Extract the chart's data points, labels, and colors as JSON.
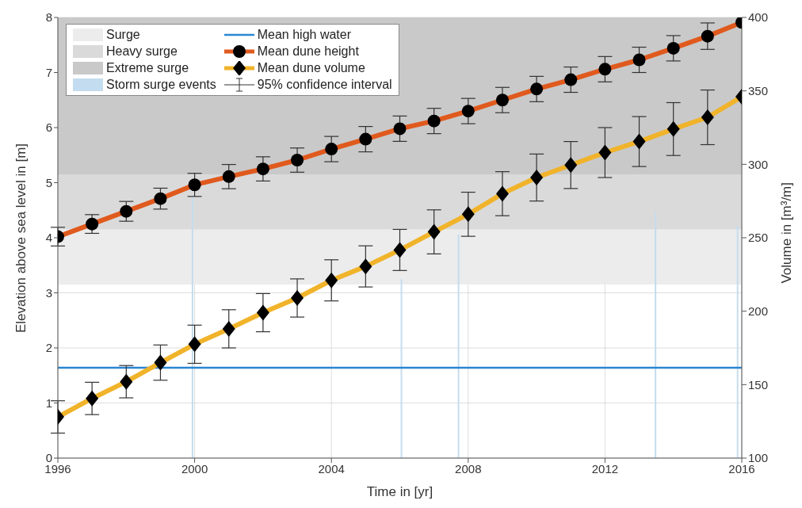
{
  "chart_data": {
    "type": "line",
    "xlabel": "Time in [yr]",
    "ylabel": "Elevation above sea level in [m]",
    "y2label": "Volume in [m³/m]",
    "xlim": [
      1996,
      2016
    ],
    "xticks": [
      1996,
      2000,
      2004,
      2008,
      2012,
      2016
    ],
    "ylim": [
      0,
      8
    ],
    "yticks": [
      0,
      1,
      2,
      3,
      4,
      5,
      6,
      7,
      8
    ],
    "y2lim": [
      100,
      400
    ],
    "y2ticks": [
      100,
      150,
      200,
      250,
      300,
      350,
      400
    ],
    "grid": true,
    "legend": "top left",
    "line_style": "solid",
    "bands": [
      {
        "axis": "y",
        "from": 3.15,
        "to": 4.15,
        "label": "Surge",
        "color": "#ececec"
      },
      {
        "axis": "y",
        "from": 4.15,
        "to": 5.15,
        "label": "Heavy surge",
        "color": "#dadada"
      },
      {
        "axis": "y",
        "from": 5.15,
        "to": 8,
        "label": "Extreme surge",
        "color": "#c9c9c9"
      }
    ],
    "ref_lines": [
      {
        "axis": "y",
        "value": 1.64,
        "label": "Mean high water",
        "color": "#2a86d1"
      }
    ],
    "annotations": [
      "95% confidence interval"
    ],
    "series": [
      {
        "name": "Storm surge events",
        "type": "bar",
        "color": "#c3dcef",
        "x": [
          1999.94,
          2006.05,
          2007.72,
          2013.48,
          2015.88
        ],
        "values": [
          4.75,
          3.25,
          4.06,
          4.46,
          4.21
        ]
      },
      {
        "name": "Mean dune height",
        "color": "#e05a1e",
        "marker": "circle",
        "x": [
          1996,
          1997,
          1998,
          1999,
          2000,
          2001,
          2002,
          2003,
          2004,
          2005,
          2006,
          2007,
          2008,
          2009,
          2010,
          2011,
          2012,
          2013,
          2014,
          2015,
          2016
        ],
        "values": [
          4.02,
          4.25,
          4.48,
          4.71,
          4.96,
          5.11,
          5.25,
          5.41,
          5.61,
          5.79,
          5.98,
          6.12,
          6.3,
          6.5,
          6.7,
          6.87,
          7.06,
          7.23,
          7.44,
          7.66,
          7.91
        ],
        "errors": [
          0.17,
          0.17,
          0.18,
          0.19,
          0.21,
          0.22,
          0.22,
          0.22,
          0.23,
          0.23,
          0.23,
          0.23,
          0.23,
          0.23,
          0.23,
          0.23,
          0.23,
          0.23,
          0.23,
          0.24,
          null
        ]
      },
      {
        "name": "Mean dune volume",
        "axis": "y2",
        "color": "#f0b32a",
        "marker": "diamond",
        "x": [
          1996,
          1997,
          1998,
          1999,
          2000,
          2001,
          2002,
          2003,
          2004,
          2005,
          2006,
          2007,
          2008,
          2009,
          2010,
          2011,
          2012,
          2013,
          2014,
          2015,
          2016
        ],
        "values": [
          128,
          140.6,
          152,
          165,
          177.5,
          188,
          199,
          209,
          221,
          230.5,
          241.7,
          254,
          266,
          280,
          291,
          299.5,
          308,
          315.5,
          324,
          332,
          346
        ],
        "errors": [
          11,
          11,
          11,
          12,
          13,
          13,
          13,
          13,
          14,
          14,
          14,
          15,
          15,
          15,
          16,
          16,
          17,
          17,
          18,
          18.6,
          null
        ]
      }
    ]
  }
}
